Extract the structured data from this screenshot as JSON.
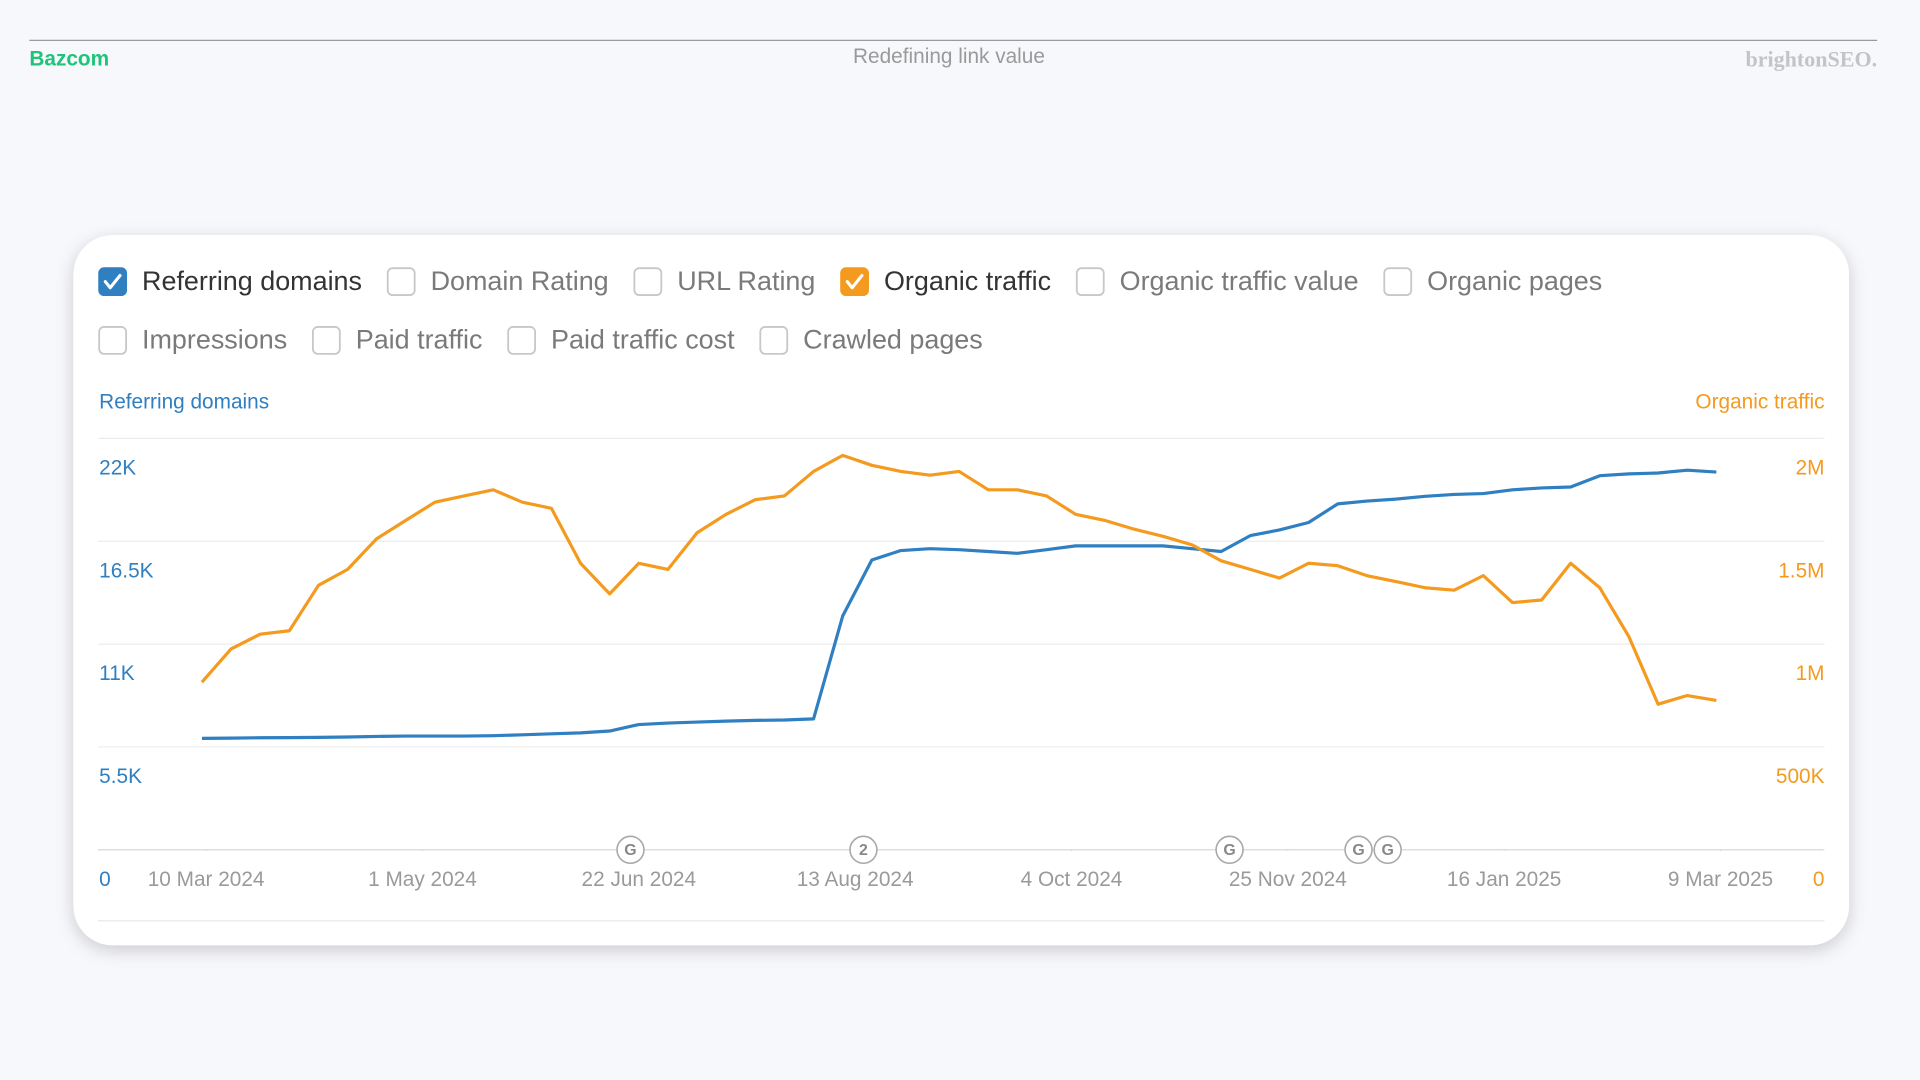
{
  "header": {
    "logo": "Bazcom",
    "title": "Redefining link value",
    "brand": "brightonSEO."
  },
  "controls": [
    {
      "label": "Referring domains",
      "checked": true,
      "color": "#2f7fc1"
    },
    {
      "label": "Domain Rating",
      "checked": false
    },
    {
      "label": "URL Rating",
      "checked": false
    },
    {
      "label": "Organic traffic",
      "checked": true,
      "color": "#f39a1f"
    },
    {
      "label": "Organic traffic value",
      "checked": false
    },
    {
      "label": "Organic pages",
      "checked": false
    },
    {
      "label": "Impressions",
      "checked": false
    },
    {
      "label": "Paid traffic",
      "checked": false
    },
    {
      "label": "Paid traffic cost",
      "checked": false
    },
    {
      "label": "Crawled pages",
      "checked": false
    }
  ],
  "chart_data": {
    "type": "line",
    "ylabel": "Referring domains",
    "y2label": "Organic traffic",
    "x": [
      "2024-03-09",
      "2024-03-16",
      "2024-03-23",
      "2024-03-30",
      "2024-04-06",
      "2024-04-13",
      "2024-04-20",
      "2024-04-27",
      "2024-05-04",
      "2024-05-11",
      "2024-05-18",
      "2024-05-25",
      "2024-06-01",
      "2024-06-08",
      "2024-06-15",
      "2024-06-22",
      "2024-06-29",
      "2024-07-06",
      "2024-07-13",
      "2024-07-20",
      "2024-07-27",
      "2024-08-03",
      "2024-08-10",
      "2024-08-17",
      "2024-08-24",
      "2024-08-31",
      "2024-09-07",
      "2024-09-14",
      "2024-09-21",
      "2024-09-28",
      "2024-10-05",
      "2024-10-12",
      "2024-10-19",
      "2024-10-26",
      "2024-11-02",
      "2024-11-09",
      "2024-11-16",
      "2024-11-23",
      "2024-11-30",
      "2024-12-07",
      "2024-12-14",
      "2024-12-21",
      "2024-12-28",
      "2025-01-04",
      "2025-01-11",
      "2025-01-18",
      "2025-01-25",
      "2025-02-01",
      "2025-02-08",
      "2025-02-15",
      "2025-02-22",
      "2025-03-01",
      "2025-03-08"
    ],
    "series": [
      {
        "name": "Referring domains",
        "color": "#2f7fc1",
        "axis": "y",
        "values": [
          5960,
          5970,
          5990,
          6000,
          6010,
          6030,
          6060,
          6080,
          6080,
          6080,
          6100,
          6150,
          6200,
          6250,
          6350,
          6700,
          6780,
          6830,
          6880,
          6920,
          6940,
          7000,
          12500,
          15500,
          16000,
          16100,
          16050,
          15950,
          15850,
          16050,
          16250,
          16250,
          16250,
          16250,
          16100,
          15950,
          16800,
          17100,
          17500,
          18500,
          18650,
          18750,
          18900,
          19000,
          19050,
          19250,
          19350,
          19400,
          20000,
          20100,
          20150,
          20300,
          20200
        ]
      },
      {
        "name": "Organic traffic",
        "color": "#f39a1f",
        "axis": "y2",
        "values": [
          815000,
          976000,
          1048000,
          1065000,
          1286000,
          1363000,
          1512000,
          1601000,
          1690000,
          1720000,
          1750000,
          1690000,
          1660000,
          1393000,
          1244000,
          1393000,
          1363000,
          1541000,
          1631000,
          1702000,
          1720000,
          1839000,
          1917000,
          1869000,
          1839000,
          1821000,
          1839000,
          1750000,
          1750000,
          1720000,
          1631000,
          1601000,
          1559000,
          1524000,
          1482000,
          1405000,
          1363000,
          1321000,
          1393000,
          1381000,
          1333000,
          1304000,
          1274000,
          1262000,
          1333000,
          1202000,
          1214000,
          1393000,
          1274000,
          1036000,
          708000,
          750000,
          726000
        ]
      }
    ],
    "xlim": [
      "2024-02-13",
      "2025-04-03"
    ],
    "xticks": [
      {
        "value": "2024-03-10",
        "label": "10 Mar 2024"
      },
      {
        "value": "2024-05-01",
        "label": "1 May 2024"
      },
      {
        "value": "2024-06-22",
        "label": "22 Jun 2024"
      },
      {
        "value": "2024-08-13",
        "label": "13 Aug 2024"
      },
      {
        "value": "2024-10-04",
        "label": "4 Oct 2024"
      },
      {
        "value": "2024-11-25",
        "label": "25 Nov 2024"
      },
      {
        "value": "2025-01-16",
        "label": "16 Jan 2025"
      },
      {
        "value": "2025-03-09",
        "label": "9 Mar 2025"
      }
    ],
    "ylim": [
      0,
      22000
    ],
    "yticks": [
      0,
      {
        "value": 5500,
        "label": "5.5K"
      },
      {
        "value": 11000,
        "label": "11K"
      },
      {
        "value": 16500,
        "label": "16.5K"
      },
      {
        "value": 22000,
        "label": "22K"
      }
    ],
    "y2lim": [
      0,
      2000000
    ],
    "y2ticks": [
      0,
      {
        "value": 500000,
        "label": "500K"
      },
      {
        "value": 1000000,
        "label": "1M"
      },
      {
        "value": 1500000,
        "label": "1.5M"
      },
      {
        "value": 2000000,
        "label": "2M"
      }
    ],
    "grid": true,
    "annotations": [
      {
        "x": "2024-06-20",
        "label": "G"
      },
      {
        "x": "2024-08-15",
        "label": "2"
      },
      {
        "x": "2024-11-11",
        "label": "G"
      },
      {
        "x": "2024-12-12",
        "label": "G"
      },
      {
        "x": "2024-12-19",
        "label": "G"
      }
    ]
  }
}
